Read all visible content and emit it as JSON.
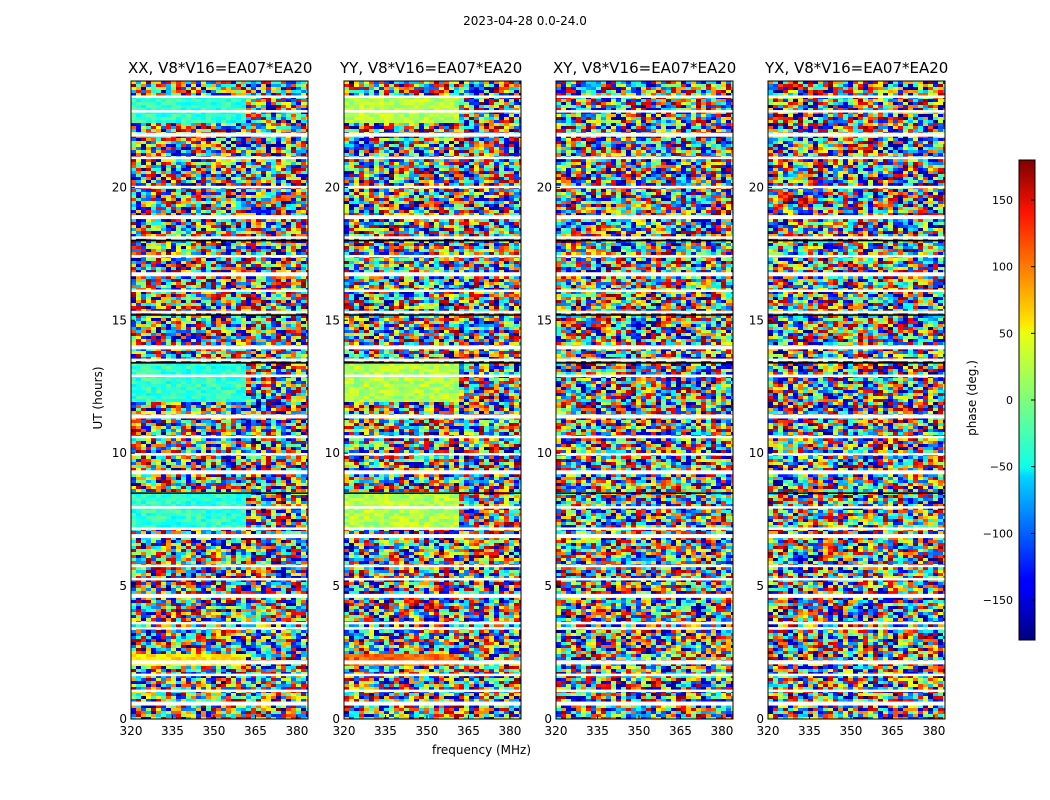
{
  "figure_title": "2023-04-28 0.0-24.0",
  "chart_data": {
    "type": "heatmap",
    "suptitle": "2023-04-28 0.0-24.0",
    "xlabel": "frequency (MHz)",
    "ylabel": "UT (hours)",
    "xlim": [
      320,
      384
    ],
    "ylim": [
      0,
      24
    ],
    "xticks": [
      320,
      335,
      350,
      365,
      380
    ],
    "yticks": [
      0,
      5,
      10,
      15,
      20
    ],
    "colorbar": {
      "label": "phase (deg.)",
      "range": [
        -180,
        180
      ],
      "ticks": [
        150,
        100,
        50,
        0,
        -50,
        -100,
        -150
      ],
      "tick_labels": [
        "150",
        "100",
        "50",
        "0",
        "−50",
        "−100",
        "−150"
      ],
      "colormap": "jet"
    },
    "panels": [
      {
        "title": "XX, V8*V16=EA07*EA20",
        "pol": "XX"
      },
      {
        "title": "YY, V8*V16=EA07*EA20",
        "pol": "YY"
      },
      {
        "title": "XY, V8*V16=EA07*EA20",
        "pol": "XY"
      },
      {
        "title": "YX, V8*V16=EA07*EA20",
        "pol": "YX"
      }
    ],
    "flagged_time_hours": [
      0.6,
      1.05,
      1.65,
      2.15,
      3.4,
      3.6,
      4.65,
      5.25,
      5.75,
      6.9,
      7.15,
      7.95,
      9.3,
      9.95,
      10.6,
      11.4,
      12.9,
      13.5,
      14.0,
      15.3,
      16.1,
      16.75,
      17.4,
      18.1,
      18.9,
      20.0,
      21.1,
      22.0,
      22.85,
      23.4
    ]
  }
}
